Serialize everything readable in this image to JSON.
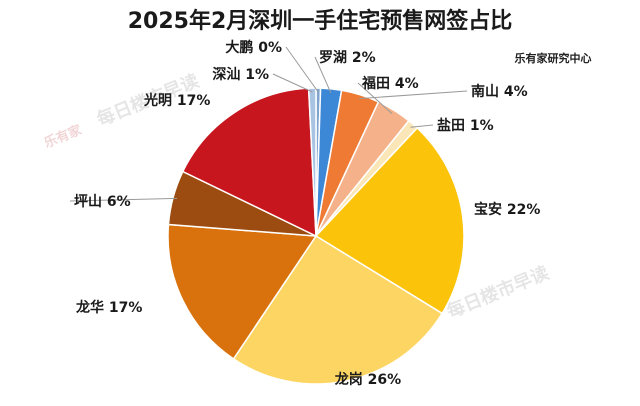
{
  "chart_data": {
    "type": "pie",
    "title": "2025年2月深圳一手住宅预售网签占比",
    "source": "乐有家研究中心",
    "watermark": "每日楼市早读",
    "watermark_logo": "乐有家",
    "slices": [
      {
        "name": "大鹏",
        "label": "大鹏 0%",
        "value": 0.5,
        "color": "#7fa4cf"
      },
      {
        "name": "罗湖",
        "label": "罗湖 2%",
        "value": 2.3,
        "color": "#3c88d6"
      },
      {
        "name": "南山",
        "label": "南山 4%",
        "value": 4.2,
        "color": "#ee7a34"
      },
      {
        "name": "福田",
        "label": "福田 4%",
        "value": 3.9,
        "color": "#f5b28a"
      },
      {
        "name": "盐田",
        "label": "盐田 1%",
        "value": 1.2,
        "color": "#fbe6b8"
      },
      {
        "name": "宝安",
        "label": "宝安 22%",
        "value": 22.0,
        "color": "#fbc30a"
      },
      {
        "name": "龙岗",
        "label": "龙岗 26%",
        "value": 25.9,
        "color": "#fdd562"
      },
      {
        "name": "龙华",
        "label": "龙华 17%",
        "value": 17.0,
        "color": "#d9720d"
      },
      {
        "name": "坪山",
        "label": "坪山 6%",
        "value": 6.0,
        "color": "#9c4c10"
      },
      {
        "name": "光明",
        "label": "光明 17%",
        "value": 17.2,
        "color": "#c8161f"
      },
      {
        "name": "深汕",
        "label": "深汕 1%",
        "value": 0.8,
        "color": "#a9c3e3"
      }
    ]
  }
}
